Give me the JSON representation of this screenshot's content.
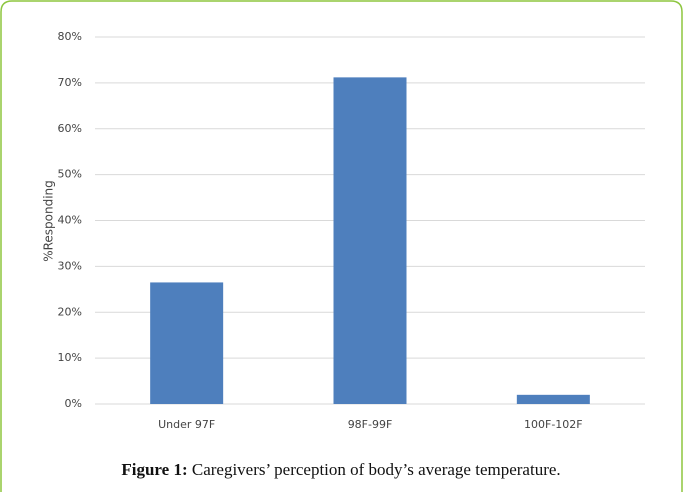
{
  "chart_data": {
    "type": "bar",
    "y_label": "%Responding",
    "categories": [
      "Under 97F",
      "98F-99F",
      "100F-102F"
    ],
    "values": [
      26.5,
      71.2,
      2
    ],
    "color": "#4e7fbd",
    "ylim": [
      0,
      80
    ],
    "yticks": [
      {
        "value": 0,
        "label": "0%"
      },
      {
        "value": 10,
        "label": "10%"
      },
      {
        "value": 20,
        "label": "20%"
      },
      {
        "value": 30,
        "label": "30%"
      },
      {
        "value": 40,
        "label": "40%"
      },
      {
        "value": 50,
        "label": "50%"
      },
      {
        "value": 60,
        "label": "60%"
      },
      {
        "value": 70,
        "label": "70%"
      },
      {
        "value": 80,
        "label": "80%"
      }
    ],
    "grid": true,
    "caption_label": "Figure 1:",
    "caption": "Caregivers’ perception of body’s average temperature."
  }
}
